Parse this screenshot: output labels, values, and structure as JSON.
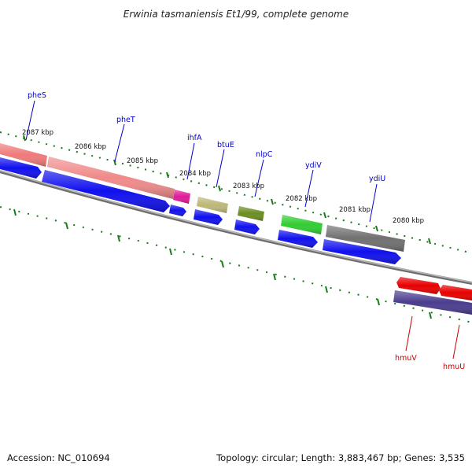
{
  "title": "Erwinia tasmaniensis Et1/99, complete genome",
  "footer": {
    "accession": "Accession: NC_010694",
    "summary": "Topology: circular; Length: 3,883,467 bp; Genes: 3,535"
  },
  "colors": {
    "ticks": "#1a7a1a",
    "backbone": "#8a8a8a",
    "cds": "#1010ee",
    "label_blue": "#0000c8",
    "label_red": "#cc0000",
    "pheS": "#f07a7a",
    "pheT": "#f08a8a",
    "ihfA": "#e01a9a",
    "btuE": "#bdb779",
    "nlpC": "#6b8e23",
    "ydiV": "#32cd32",
    "ydiU": "#707070",
    "hmuV": "#e80000",
    "hmuU": "#e80000",
    "hmu_cds": "#4a3d8e"
  },
  "tick_labels": [
    "2087 kbp",
    "2086 kbp",
    "2085 kbp",
    "2084 kbp",
    "2083 kbp",
    "2082 kbp",
    "2081 kbp",
    "2080 kbp"
  ],
  "gene_labels_top": [
    "pheS",
    "pheT",
    "ihfA",
    "btuE",
    "nlpC",
    "ydiV",
    "ydiU"
  ],
  "gene_labels_bottom": [
    "hmuV",
    "hmuU"
  ]
}
